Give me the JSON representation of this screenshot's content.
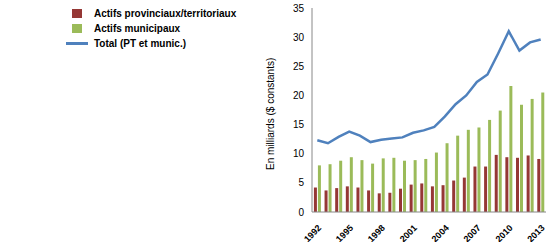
{
  "chart_data": {
    "type": "bar",
    "y_label": "En milliards ($ constants)",
    "categories": [
      "1992",
      null,
      null,
      "1995",
      null,
      null,
      "1998",
      null,
      null,
      "2001",
      null,
      null,
      "2004",
      null,
      null,
      "2007",
      null,
      null,
      "2010",
      null,
      null,
      "2013"
    ],
    "series": [
      {
        "name": "Actifs provinciaux/territoriaux",
        "type": "bar",
        "color": "#953735",
        "values": [
          4.2,
          3.7,
          4.1,
          4.4,
          4.2,
          3.7,
          3.2,
          3.3,
          4.0,
          4.7,
          4.9,
          4.4,
          4.6,
          5.4,
          5.9,
          7.8,
          7.8,
          9.8,
          9.4,
          9.3,
          9.7,
          9.1
        ]
      },
      {
        "name": "Actifs municipaux",
        "type": "bar",
        "color": "#9BBB59",
        "values": [
          8.0,
          8.2,
          8.8,
          9.4,
          8.9,
          8.3,
          9.2,
          9.3,
          8.8,
          8.9,
          9.1,
          10.2,
          11.8,
          13.1,
          14.1,
          14.5,
          15.8,
          17.4,
          21.6,
          18.4,
          19.4,
          20.5
        ]
      },
      {
        "name": "Total (PT et munic.)",
        "type": "line",
        "color": "#4F81BD",
        "values": [
          12.3,
          11.8,
          12.9,
          13.8,
          13.1,
          12.0,
          12.4,
          12.6,
          12.8,
          13.6,
          14.0,
          14.6,
          16.4,
          18.5,
          20.0,
          22.3,
          23.6,
          27.2,
          31.0,
          27.7,
          29.1,
          29.6
        ]
      }
    ],
    "ylim": [
      0,
      35
    ],
    "yticks": [
      0,
      5,
      10,
      15,
      20,
      25,
      30,
      35
    ],
    "grid": false,
    "legend": "upper left"
  }
}
